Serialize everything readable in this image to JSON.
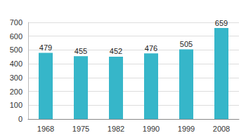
{
  "chart_data": {
    "type": "bar",
    "categories": [
      "1968",
      "1975",
      "1982",
      "1990",
      "1999",
      "2008"
    ],
    "values": [
      479,
      455,
      452,
      476,
      505,
      659
    ],
    "color": "#36b6c9",
    "ylim": [
      0,
      700
    ],
    "yticks": [
      0,
      100,
      200,
      300,
      400,
      500,
      600,
      700
    ],
    "grid": true,
    "data_labels": true
  }
}
